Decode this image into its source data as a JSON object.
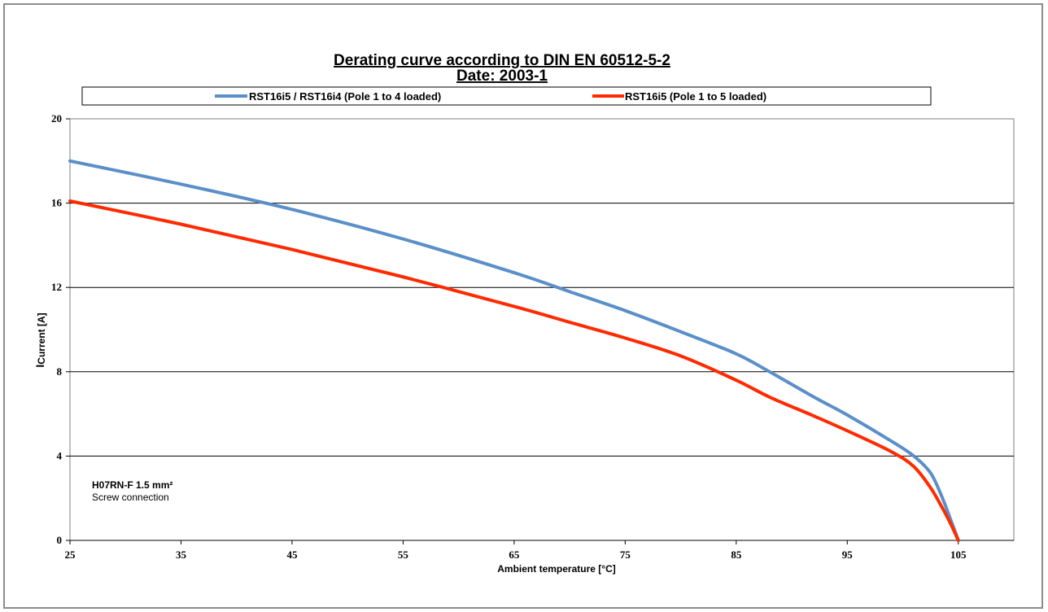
{
  "chart_data": {
    "type": "line",
    "title": "Derating curve according to DIN EN 60512-5-2",
    "subtitle": "Date: 2003-1",
    "xlabel": "Ambient temperature [°C]",
    "ylabel_prefix": "I",
    "ylabel": "Current [A]",
    "xlim": [
      25,
      110
    ],
    "ylim": [
      0,
      20
    ],
    "x_ticks": [
      25,
      35,
      45,
      55,
      65,
      75,
      85,
      95,
      105
    ],
    "y_ticks": [
      0,
      4,
      8,
      12,
      16,
      20
    ],
    "grid": "horizontal",
    "legend_position": "top",
    "annotation": {
      "line1": "H07RN-F 1.5 mm²",
      "line2": "Screw connection"
    },
    "series": [
      {
        "name": "RST16i5 / RST16i4 (Pole 1 to 4 loaded)",
        "color": "#5b8fc8",
        "x": [
          25,
          35,
          45,
          55,
          65,
          70,
          75,
          80,
          85,
          88,
          92,
          95,
          99,
          101,
          102.5,
          103.5,
          104.3,
          105
        ],
        "y": [
          18,
          16.9,
          15.7,
          14.3,
          12.7,
          11.8,
          10.9,
          9.9,
          8.85,
          8.0,
          6.8,
          5.95,
          4.7,
          4.0,
          3.2,
          2.1,
          1.0,
          0
        ]
      },
      {
        "name": "RST16i5 (Pole 1 to 5 loaded)",
        "color": "#ff2a00",
        "x": [
          25,
          35,
          45,
          55,
          65,
          70,
          75,
          80,
          85,
          88,
          92,
          95,
          99,
          101,
          102.5,
          103.5,
          104.3,
          105
        ],
        "y": [
          16.1,
          15.0,
          13.8,
          12.5,
          11.1,
          10.35,
          9.6,
          8.75,
          7.6,
          6.8,
          5.9,
          5.2,
          4.2,
          3.5,
          2.5,
          1.6,
          0.8,
          0
        ]
      }
    ]
  }
}
